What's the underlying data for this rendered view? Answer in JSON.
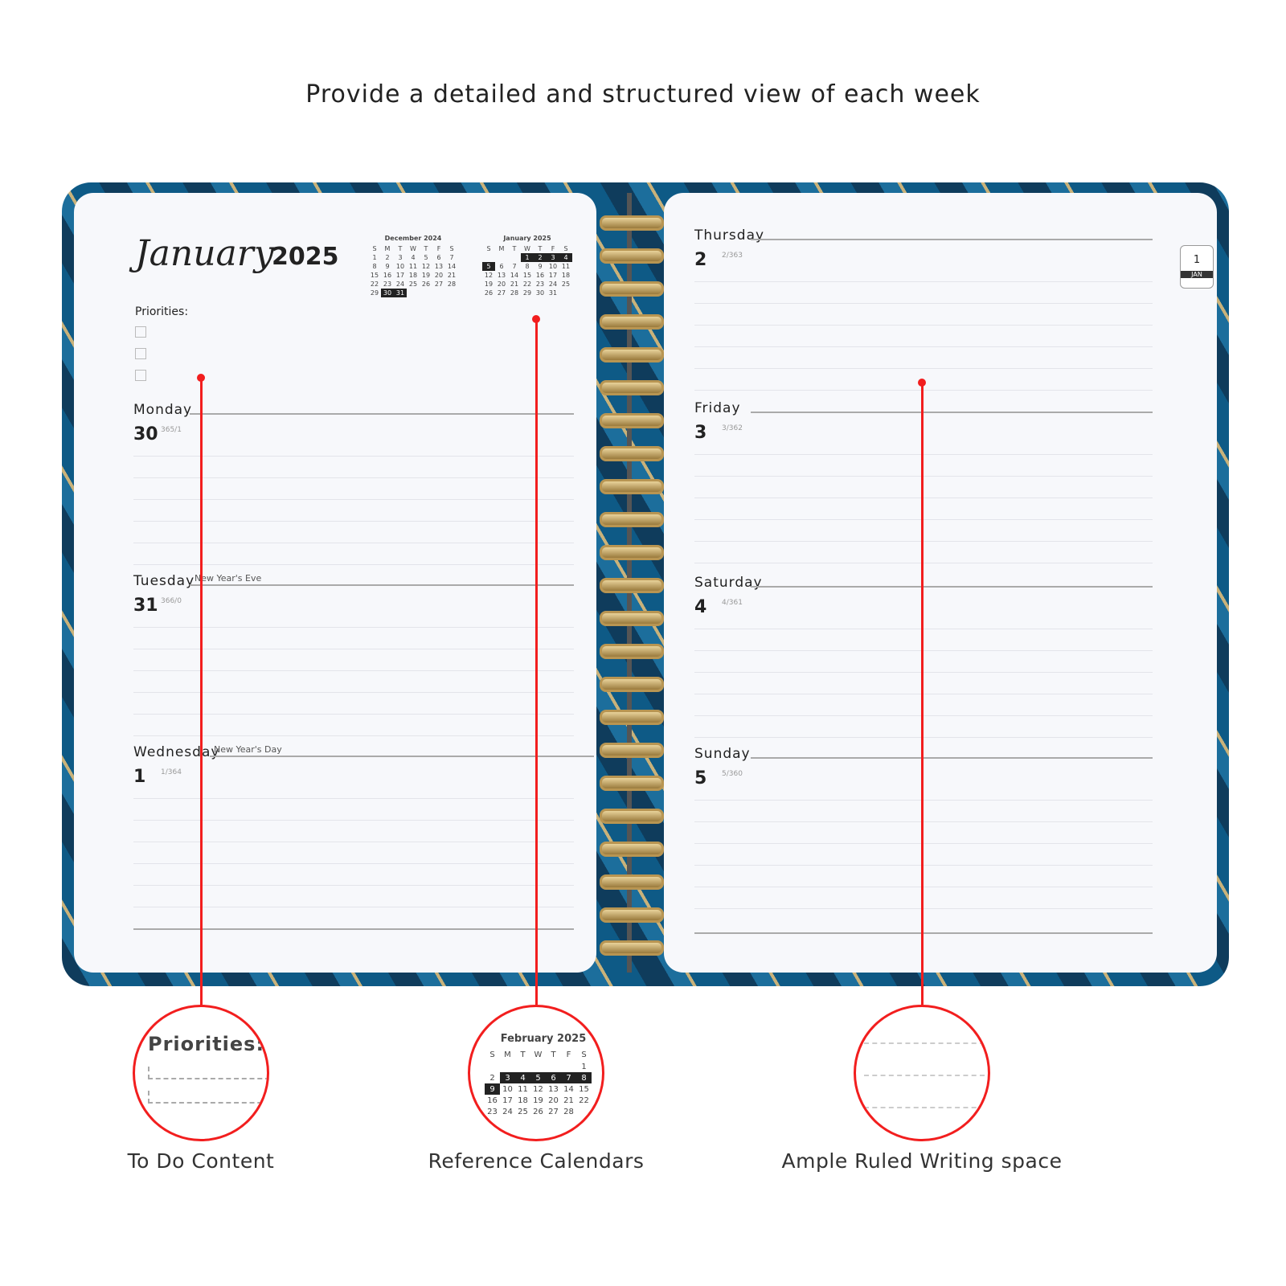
{
  "headline": "Provide a detailed and structured view of each week",
  "planner": {
    "month_title": "January",
    "year": "2025",
    "priorities_label": "Priorities:",
    "tab": {
      "number": "1",
      "label": "JAN"
    },
    "mini_calendars": [
      {
        "title": "December 2024",
        "weekdays": [
          "S",
          "M",
          "T",
          "W",
          "T",
          "F",
          "S"
        ],
        "weeks": [
          [
            "1",
            "2",
            "3",
            "4",
            "5",
            "6",
            "7"
          ],
          [
            "8",
            "9",
            "10",
            "11",
            "12",
            "13",
            "14"
          ],
          [
            "15",
            "16",
            "17",
            "18",
            "19",
            "20",
            "21"
          ],
          [
            "22",
            "23",
            "24",
            "25",
            "26",
            "27",
            "28"
          ],
          [
            "29",
            "30",
            "31",
            "",
            "",
            "",
            ""
          ]
        ],
        "highlighted": [
          "30",
          "31"
        ]
      },
      {
        "title": "January 2025",
        "weekdays": [
          "S",
          "M",
          "T",
          "W",
          "T",
          "F",
          "S"
        ],
        "weeks": [
          [
            "",
            "",
            "",
            "1",
            "2",
            "3",
            "4"
          ],
          [
            "5",
            "6",
            "7",
            "8",
            "9",
            "10",
            "11"
          ],
          [
            "12",
            "13",
            "14",
            "15",
            "16",
            "17",
            "18"
          ],
          [
            "19",
            "20",
            "21",
            "22",
            "23",
            "24",
            "25"
          ],
          [
            "26",
            "27",
            "28",
            "29",
            "30",
            "31",
            ""
          ]
        ],
        "highlighted": [
          "1",
          "2",
          "3",
          "4",
          "5"
        ]
      }
    ],
    "days_left": [
      {
        "name": "Monday",
        "date": "30",
        "count": "365/1",
        "holiday": ""
      },
      {
        "name": "Tuesday",
        "date": "31",
        "count": "366/0",
        "holiday": "New Year's Eve"
      },
      {
        "name": "Wednesday",
        "date": "1",
        "count": "1/364",
        "holiday": "New Year's Day"
      }
    ],
    "days_right": [
      {
        "name": "Thursday",
        "date": "2",
        "count": "2/363"
      },
      {
        "name": "Friday",
        "date": "3",
        "count": "3/362"
      },
      {
        "name": "Saturday",
        "date": "4",
        "count": "4/361"
      },
      {
        "name": "Sunday",
        "date": "5",
        "count": "5/360"
      }
    ]
  },
  "callouts": [
    {
      "caption": "To Do Content",
      "zoom_text": "Priorities:"
    },
    {
      "caption": "Reference Calendars",
      "zoom_calendar": {
        "title": "February 2025",
        "weekdays": [
          "S",
          "M",
          "T",
          "W",
          "T",
          "F",
          "S"
        ],
        "weeks": [
          [
            "",
            "",
            "",
            "",
            "",
            "",
            "1"
          ],
          [
            "2",
            "3",
            "4",
            "5",
            "6",
            "7",
            "8"
          ],
          [
            "9",
            "10",
            "11",
            "12",
            "13",
            "14",
            "15"
          ],
          [
            "16",
            "17",
            "18",
            "19",
            "20",
            "21",
            "22"
          ],
          [
            "23",
            "24",
            "25",
            "26",
            "27",
            "28",
            ""
          ]
        ],
        "highlighted": [
          "3",
          "4",
          "5",
          "6",
          "7",
          "8",
          "9"
        ]
      }
    },
    {
      "caption": "Ample Ruled Writing space"
    }
  ],
  "colors": {
    "accent": "#f21e1e",
    "cover": "#0f3c5c"
  }
}
